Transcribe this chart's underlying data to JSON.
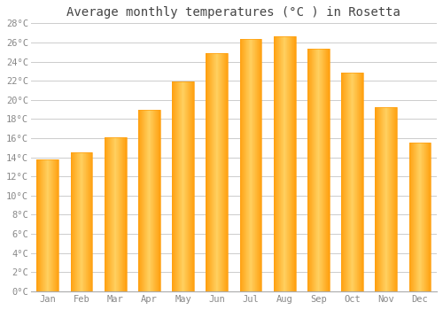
{
  "title": "Average monthly temperatures (°C ) in Rosetta",
  "months": [
    "Jan",
    "Feb",
    "Mar",
    "Apr",
    "May",
    "Jun",
    "Jul",
    "Aug",
    "Sep",
    "Oct",
    "Nov",
    "Dec"
  ],
  "temperatures": [
    13.8,
    14.5,
    16.1,
    19.0,
    21.9,
    24.9,
    26.4,
    26.6,
    25.3,
    22.8,
    19.2,
    15.5
  ],
  "bar_color_center": "#FFD060",
  "bar_color_edge": "#FFA010",
  "background_color": "#FFFFFF",
  "grid_color": "#CCCCCC",
  "text_color": "#888888",
  "ylim": [
    0,
    28
  ],
  "ytick_step": 2,
  "title_fontsize": 10,
  "tick_fontsize": 7.5,
  "font_family": "monospace",
  "bar_width": 0.65
}
